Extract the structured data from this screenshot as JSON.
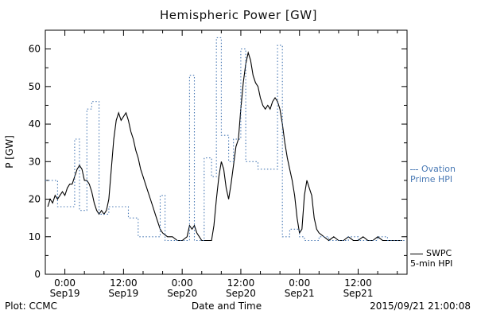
{
  "chart": {
    "title": "Hemispheric Power [GW]",
    "ylabel": "P [GW]",
    "xlabel": "Date and Time"
  },
  "footer": {
    "left": "Plot: CCMC",
    "right": "2015/09/21 21:00:08"
  },
  "legend": {
    "ovation": {
      "line1": "Ovation",
      "line2": "Prime HPI"
    },
    "swpc": {
      "line1": "SWPC",
      "line2": "5-min HPI"
    }
  },
  "colors": {
    "ovation": "#4a7ab5",
    "swpc": "#000000"
  },
  "chart_data": {
    "type": "line",
    "title": "Hemispheric Power [GW]",
    "xlabel": "Date and Time",
    "ylabel": "P [GW]",
    "x_unit": "hours from 2015-09-19 00:00",
    "xlim": [
      -4,
      70
    ],
    "ylim": [
      0,
      65
    ],
    "grid": false,
    "legend_position": "right-outside",
    "y_ticks": [
      0,
      10,
      20,
      30,
      40,
      50,
      60
    ],
    "x_ticks": [
      {
        "t": 0,
        "time": "0:00",
        "date": "Sep19"
      },
      {
        "t": 12,
        "time": "12:00",
        "date": "Sep19"
      },
      {
        "t": 24,
        "time": "0:00",
        "date": "Sep20"
      },
      {
        "t": 36,
        "time": "12:00",
        "date": "Sep20"
      },
      {
        "t": 48,
        "time": "0:00",
        "date": "Sep21"
      },
      {
        "t": 60,
        "time": "12:00",
        "date": "Sep21"
      }
    ],
    "x_minor_step": 4,
    "series": [
      {
        "name": "SWPC 5-min HPI",
        "color": "#000000",
        "style": "solid",
        "interp": "linear",
        "points": [
          [
            -3.5,
            18
          ],
          [
            -3,
            20
          ],
          [
            -2.5,
            19
          ],
          [
            -2,
            21
          ],
          [
            -1.5,
            20
          ],
          [
            -1,
            21
          ],
          [
            -0.5,
            22
          ],
          [
            0,
            21
          ],
          [
            0.5,
            23
          ],
          [
            1,
            24
          ],
          [
            1.5,
            24
          ],
          [
            2,
            26
          ],
          [
            2.5,
            28
          ],
          [
            3,
            29
          ],
          [
            3.5,
            28
          ],
          [
            4,
            25
          ],
          [
            4.5,
            25
          ],
          [
            5,
            24
          ],
          [
            5.5,
            22
          ],
          [
            6,
            19
          ],
          [
            6.5,
            17
          ],
          [
            7,
            16
          ],
          [
            7.5,
            17
          ],
          [
            8,
            16
          ],
          [
            8.5,
            17
          ],
          [
            9,
            20
          ],
          [
            9.5,
            28
          ],
          [
            10,
            36
          ],
          [
            10.5,
            41
          ],
          [
            11,
            43
          ],
          [
            11.5,
            41
          ],
          [
            12,
            42
          ],
          [
            12.5,
            43
          ],
          [
            13,
            41
          ],
          [
            13.5,
            38
          ],
          [
            14,
            36
          ],
          [
            14.5,
            33
          ],
          [
            15,
            31
          ],
          [
            15.5,
            28
          ],
          [
            16,
            26
          ],
          [
            16.5,
            24
          ],
          [
            17,
            22
          ],
          [
            17.5,
            20
          ],
          [
            18,
            18
          ],
          [
            18.5,
            16
          ],
          [
            19,
            14
          ],
          [
            19.5,
            12
          ],
          [
            20,
            11
          ],
          [
            21,
            10
          ],
          [
            22,
            10
          ],
          [
            23,
            9
          ],
          [
            24,
            9
          ],
          [
            25,
            10
          ],
          [
            25.5,
            13
          ],
          [
            26,
            12
          ],
          [
            26.5,
            13
          ],
          [
            27,
            11
          ],
          [
            27.5,
            10
          ],
          [
            28,
            9
          ],
          [
            29,
            9
          ],
          [
            30,
            9
          ],
          [
            30.5,
            13
          ],
          [
            31,
            20
          ],
          [
            31.5,
            26
          ],
          [
            32,
            30
          ],
          [
            32.5,
            28
          ],
          [
            33,
            23
          ],
          [
            33.5,
            20
          ],
          [
            34,
            24
          ],
          [
            34.5,
            29
          ],
          [
            35,
            34
          ],
          [
            35.5,
            36
          ],
          [
            36,
            44
          ],
          [
            36.5,
            51
          ],
          [
            37,
            56
          ],
          [
            37.5,
            59
          ],
          [
            38,
            57
          ],
          [
            38.5,
            53
          ],
          [
            39,
            51
          ],
          [
            39.5,
            50
          ],
          [
            40,
            47
          ],
          [
            40.5,
            45
          ],
          [
            41,
            44
          ],
          [
            41.5,
            45
          ],
          [
            42,
            44
          ],
          [
            42.5,
            46
          ],
          [
            43,
            47
          ],
          [
            43.5,
            46
          ],
          [
            44,
            44
          ],
          [
            44.5,
            40
          ],
          [
            45,
            35
          ],
          [
            45.5,
            31
          ],
          [
            46,
            28
          ],
          [
            46.5,
            25
          ],
          [
            47,
            21
          ],
          [
            47.5,
            15
          ],
          [
            48,
            11
          ],
          [
            48.5,
            12
          ],
          [
            49,
            21
          ],
          [
            49.5,
            25
          ],
          [
            50,
            23
          ],
          [
            50.5,
            21
          ],
          [
            51,
            15
          ],
          [
            51.5,
            12
          ],
          [
            52,
            11
          ],
          [
            53,
            10
          ],
          [
            54,
            9
          ],
          [
            55,
            10
          ],
          [
            56,
            9
          ],
          [
            57,
            9
          ],
          [
            58,
            10
          ],
          [
            59,
            9
          ],
          [
            60,
            9
          ],
          [
            61,
            10
          ],
          [
            62,
            9
          ],
          [
            63,
            9
          ],
          [
            64,
            10
          ],
          [
            65,
            9
          ],
          [
            66,
            9
          ],
          [
            67,
            9
          ],
          [
            68,
            9
          ],
          [
            69,
            9
          ]
        ]
      },
      {
        "name": "Ovation Prime HPI",
        "color": "#4a7ab5",
        "style": "dotted",
        "interp": "step",
        "points": [
          [
            -4,
            25
          ],
          [
            -1.5,
            18
          ],
          [
            2,
            36
          ],
          [
            3,
            17
          ],
          [
            4.5,
            44
          ],
          [
            5.5,
            46
          ],
          [
            7,
            16
          ],
          [
            9,
            18
          ],
          [
            13,
            15
          ],
          [
            15,
            10
          ],
          [
            19.5,
            21
          ],
          [
            20.5,
            9
          ],
          [
            25.5,
            53
          ],
          [
            26.5,
            9
          ],
          [
            28.5,
            31
          ],
          [
            30,
            26
          ],
          [
            31,
            63
          ],
          [
            32,
            37
          ],
          [
            33.5,
            30
          ],
          [
            34.5,
            36
          ],
          [
            36,
            60
          ],
          [
            37,
            30
          ],
          [
            39.5,
            28
          ],
          [
            43.5,
            61
          ],
          [
            44.5,
            10
          ],
          [
            46,
            12
          ],
          [
            48,
            10
          ],
          [
            49,
            9
          ],
          [
            52,
            10
          ],
          [
            54,
            9
          ],
          [
            58,
            10
          ],
          [
            60,
            9
          ],
          [
            64,
            10
          ],
          [
            66,
            9
          ],
          [
            69.5,
            9
          ]
        ]
      }
    ]
  }
}
